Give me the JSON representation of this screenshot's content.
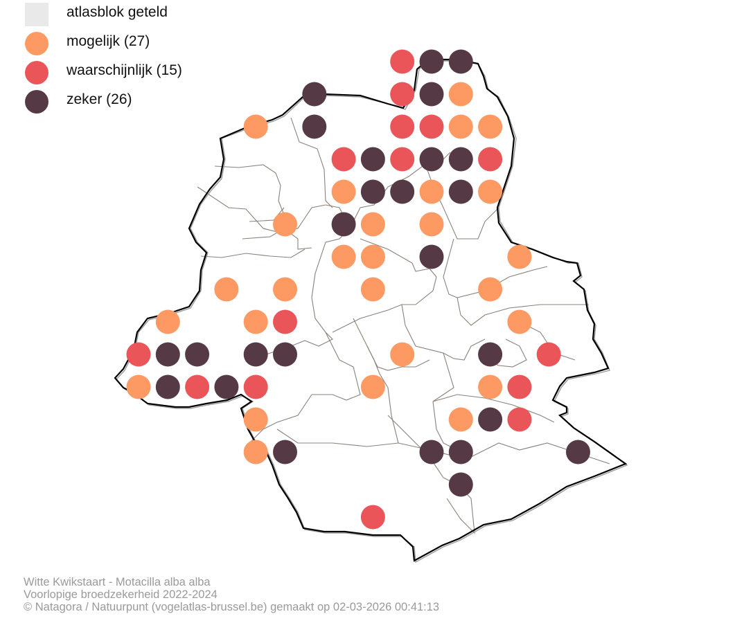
{
  "legend": {
    "counted": {
      "label": "atlasblok geteld",
      "color": "#e9e9e9"
    },
    "possible": {
      "label": "mogelijk (27)",
      "color": "#fd9a63"
    },
    "probable": {
      "label": "waarschijnlijk (15)",
      "color": "#ea5559"
    },
    "certain": {
      "label": "zeker (26)",
      "color": "#553a45"
    }
  },
  "caption": {
    "species": "Witte Kwikstaart - Motacilla alba alba",
    "subtitle": "Voorlopige broedzekerheid 2022-2024",
    "credit": "© Natagora / Natuurpunt (vogelatlas-brussel.be) gemaakt op 02-03-2026 00:41:13"
  },
  "colors": {
    "boundary": "#000000",
    "municipality_lines": "#8a8078"
  },
  "grid_observations": {
    "note_columns": "col index 0..16 (west to east), row index 0..15 (north to south)",
    "cells": [
      {
        "c": 9,
        "r": 0,
        "s": "probable"
      },
      {
        "c": 10,
        "r": 0,
        "s": "certain"
      },
      {
        "c": 11,
        "r": 0,
        "s": "certain"
      },
      {
        "c": 6,
        "r": 1,
        "s": "certain"
      },
      {
        "c": 9,
        "r": 1,
        "s": "probable"
      },
      {
        "c": 10,
        "r": 1,
        "s": "certain"
      },
      {
        "c": 11,
        "r": 1,
        "s": "possible"
      },
      {
        "c": 4,
        "r": 2,
        "s": "possible"
      },
      {
        "c": 6,
        "r": 2,
        "s": "certain"
      },
      {
        "c": 9,
        "r": 2,
        "s": "probable"
      },
      {
        "c": 10,
        "r": 2,
        "s": "probable"
      },
      {
        "c": 11,
        "r": 2,
        "s": "possible"
      },
      {
        "c": 12,
        "r": 2,
        "s": "possible"
      },
      {
        "c": 7,
        "r": 3,
        "s": "probable"
      },
      {
        "c": 8,
        "r": 3,
        "s": "certain"
      },
      {
        "c": 9,
        "r": 3,
        "s": "probable"
      },
      {
        "c": 10,
        "r": 3,
        "s": "certain"
      },
      {
        "c": 11,
        "r": 3,
        "s": "certain"
      },
      {
        "c": 12,
        "r": 3,
        "s": "probable"
      },
      {
        "c": 7,
        "r": 4,
        "s": "possible"
      },
      {
        "c": 8,
        "r": 4,
        "s": "certain"
      },
      {
        "c": 9,
        "r": 4,
        "s": "certain"
      },
      {
        "c": 10,
        "r": 4,
        "s": "possible"
      },
      {
        "c": 11,
        "r": 4,
        "s": "certain"
      },
      {
        "c": 12,
        "r": 4,
        "s": "possible"
      },
      {
        "c": 5,
        "r": 5,
        "s": "possible"
      },
      {
        "c": 7,
        "r": 5,
        "s": "certain"
      },
      {
        "c": 8,
        "r": 5,
        "s": "possible"
      },
      {
        "c": 10,
        "r": 5,
        "s": "possible"
      },
      {
        "c": 7,
        "r": 6,
        "s": "possible"
      },
      {
        "c": 8,
        "r": 6,
        "s": "possible"
      },
      {
        "c": 10,
        "r": 6,
        "s": "certain"
      },
      {
        "c": 13,
        "r": 6,
        "s": "possible"
      },
      {
        "c": 3,
        "r": 7,
        "s": "possible"
      },
      {
        "c": 5,
        "r": 7,
        "s": "possible"
      },
      {
        "c": 8,
        "r": 7,
        "s": "possible"
      },
      {
        "c": 12,
        "r": 7,
        "s": "possible"
      },
      {
        "c": 1,
        "r": 8,
        "s": "possible"
      },
      {
        "c": 4,
        "r": 8,
        "s": "possible"
      },
      {
        "c": 5,
        "r": 8,
        "s": "probable"
      },
      {
        "c": 13,
        "r": 8,
        "s": "possible"
      },
      {
        "c": 0,
        "r": 9,
        "s": "probable"
      },
      {
        "c": 1,
        "r": 9,
        "s": "certain"
      },
      {
        "c": 2,
        "r": 9,
        "s": "certain"
      },
      {
        "c": 4,
        "r": 9,
        "s": "certain"
      },
      {
        "c": 5,
        "r": 9,
        "s": "certain"
      },
      {
        "c": 9,
        "r": 9,
        "s": "possible"
      },
      {
        "c": 12,
        "r": 9,
        "s": "certain"
      },
      {
        "c": 14,
        "r": 9,
        "s": "probable"
      },
      {
        "c": 0,
        "r": 10,
        "s": "possible"
      },
      {
        "c": 1,
        "r": 10,
        "s": "certain"
      },
      {
        "c": 2,
        "r": 10,
        "s": "probable"
      },
      {
        "c": 3,
        "r": 10,
        "s": "certain"
      },
      {
        "c": 4,
        "r": 10,
        "s": "probable"
      },
      {
        "c": 8,
        "r": 10,
        "s": "possible"
      },
      {
        "c": 12,
        "r": 10,
        "s": "possible"
      },
      {
        "c": 13,
        "r": 10,
        "s": "probable"
      },
      {
        "c": 4,
        "r": 11,
        "s": "possible"
      },
      {
        "c": 11,
        "r": 11,
        "s": "possible"
      },
      {
        "c": 12,
        "r": 11,
        "s": "certain"
      },
      {
        "c": 13,
        "r": 11,
        "s": "probable"
      },
      {
        "c": 4,
        "r": 12,
        "s": "possible"
      },
      {
        "c": 5,
        "r": 12,
        "s": "certain"
      },
      {
        "c": 10,
        "r": 12,
        "s": "certain"
      },
      {
        "c": 11,
        "r": 12,
        "s": "certain"
      },
      {
        "c": 15,
        "r": 12,
        "s": "certain"
      },
      {
        "c": 11,
        "r": 13,
        "s": "certain"
      },
      {
        "c": 8,
        "r": 14,
        "s": "probable"
      }
    ]
  }
}
